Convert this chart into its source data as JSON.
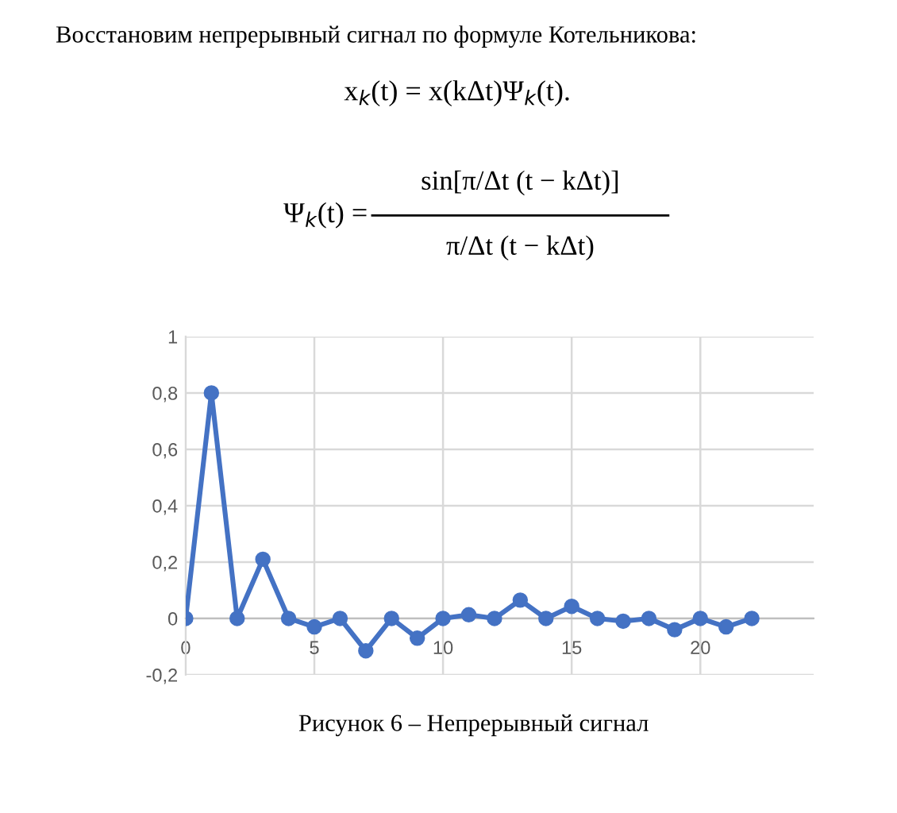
{
  "chart_data": {
    "type": "line",
    "annotations": [
      "Восстановим непрерывный сигнал по формуле Котельникова:",
      "x$_{k}$(t) = x(kΔt)Ψ$_{k}$(t).",
      "Ψ$_{k}$(t) =",
      "sin[π/Δt (t − kΔt)]",
      "π/Δt (t − kΔt)",
      "Рисунок 6 – Непрерывный сигнал"
    ],
    "x": [
      0,
      1,
      2,
      3,
      4,
      5,
      6,
      7,
      8,
      9,
      10,
      11,
      12,
      13,
      14,
      15,
      16,
      17,
      18,
      19,
      20,
      21,
      22
    ],
    "series": [
      {
        "color": "#4472c4",
        "values": [
          0,
          0.8,
          0,
          0.21,
          0,
          -0.03,
          0,
          -0.115,
          0,
          -0.07,
          0,
          0.013,
          0,
          0.065,
          0,
          0.043,
          0,
          -0.01,
          0,
          -0.04,
          0,
          -0.03,
          0
        ]
      }
    ],
    "xlim": [
      0,
      24.4
    ],
    "xticks": [
      0,
      5,
      10,
      15,
      20
    ],
    "ylim": [
      -0.2,
      1
    ],
    "yticks": [
      {
        "value": -0.2,
        "label": "-0,2"
      },
      0,
      {
        "value": 0.2,
        "label": "0,2"
      },
      {
        "value": 0.4,
        "label": "0,4"
      },
      {
        "value": 0.6,
        "label": "0,6"
      },
      {
        "value": 0.8,
        "label": "0,8"
      },
      1
    ],
    "grid": true,
    "marker": "circle",
    "line_style": "solid"
  }
}
